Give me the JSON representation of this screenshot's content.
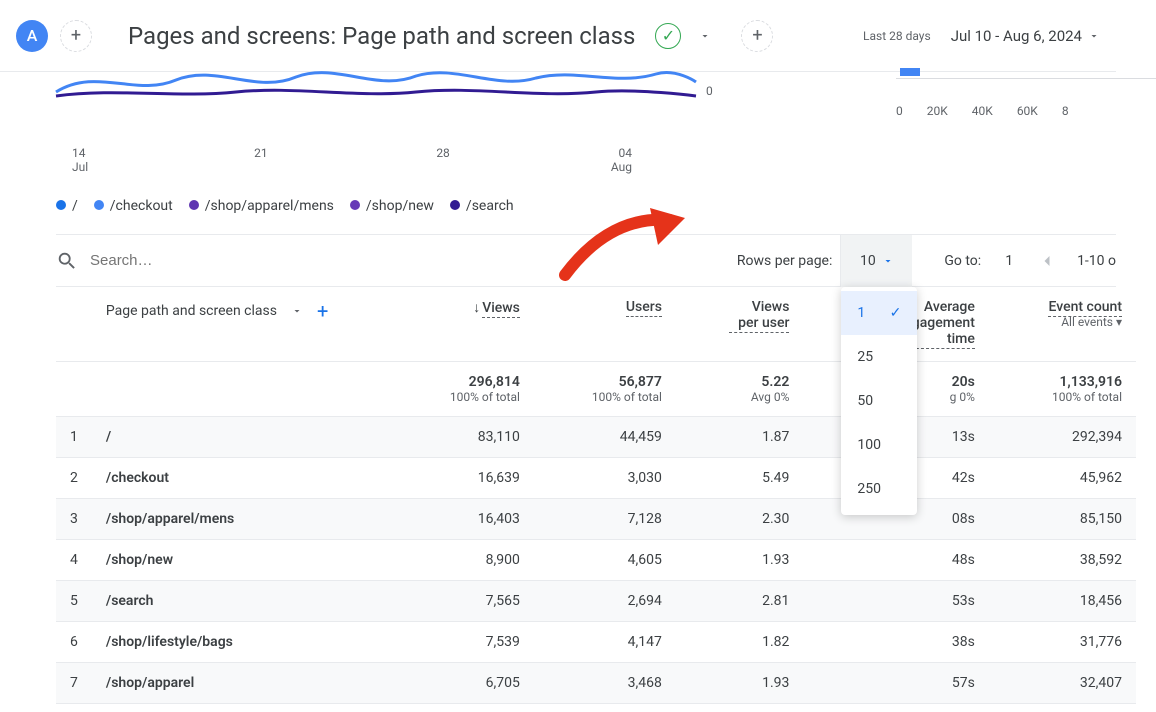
{
  "avatar_letter": "A",
  "page_title": "Pages and screens: Page path and screen class",
  "date_label": "Last 28 days",
  "date_range": "Jul 10 - Aug 6, 2024",
  "chart": {
    "ticks": [
      "14",
      "21",
      "28",
      "04"
    ],
    "sub": [
      "Jul",
      "",
      "",
      "Aug"
    ],
    "colors": {
      "s1": "#1a73e8",
      "s2": "#4285f4",
      "s3": "#5e35b1",
      "s4": "#673ab7",
      "s5": "#311b92"
    },
    "right_zero": "0",
    "right_ticks": [
      "0",
      "20K",
      "40K",
      "60K",
      "8"
    ]
  },
  "legend": [
    {
      "label": "/",
      "color": "#1a73e8"
    },
    {
      "label": "/checkout",
      "color": "#4285f4"
    },
    {
      "label": "/shop/apparel/mens",
      "color": "#5e35b1"
    },
    {
      "label": "/shop/new",
      "color": "#673ab7"
    },
    {
      "label": "/search",
      "color": "#311b92"
    }
  ],
  "search_placeholder": "Search…",
  "rpp": {
    "label": "Rows per page:",
    "current": "10",
    "options": [
      "1",
      "25",
      "50",
      "100",
      "250"
    ],
    "selected_option": "1"
  },
  "goto_label": "Go to:",
  "goto_value": "1",
  "page_range": "1-10 o",
  "table": {
    "dim_label": "Page path and screen class",
    "cols": [
      {
        "h": "Views"
      },
      {
        "h": "Users"
      },
      {
        "h": "Views per user"
      },
      {
        "h": "Average engagement time"
      },
      {
        "h": "Event count",
        "sub": "All events"
      }
    ],
    "totals": {
      "views": "296,814",
      "views_sub": "100% of total",
      "users": "56,877",
      "users_sub": "100% of total",
      "vpu": "5.22",
      "vpu_sub": "Avg 0%",
      "aet": "20s",
      "aet_sub": "g 0%",
      "events": "1,133,916",
      "events_sub": "100% of total"
    },
    "rows": [
      {
        "i": "1",
        "path": "/",
        "views": "83,110",
        "users": "44,459",
        "vpu": "1.87",
        "aet": "13s",
        "events": "292,394"
      },
      {
        "i": "2",
        "path": "/checkout",
        "views": "16,639",
        "users": "3,030",
        "vpu": "5.49",
        "aet": "42s",
        "events": "45,962"
      },
      {
        "i": "3",
        "path": "/shop/apparel/mens",
        "views": "16,403",
        "users": "7,128",
        "vpu": "2.30",
        "aet": "08s",
        "events": "85,150"
      },
      {
        "i": "4",
        "path": "/shop/new",
        "views": "8,900",
        "users": "4,605",
        "vpu": "1.93",
        "aet": "48s",
        "events": "38,592"
      },
      {
        "i": "5",
        "path": "/search",
        "views": "7,565",
        "users": "2,694",
        "vpu": "2.81",
        "aet": "53s",
        "events": "18,456"
      },
      {
        "i": "6",
        "path": "/shop/lifestyle/bags",
        "views": "7,539",
        "users": "4,147",
        "vpu": "1.82",
        "aet": "38s",
        "events": "31,776"
      },
      {
        "i": "7",
        "path": "/shop/apparel",
        "views": "6,705",
        "users": "3,468",
        "vpu": "1.93",
        "aet": "57s",
        "events": "32,407"
      }
    ]
  }
}
